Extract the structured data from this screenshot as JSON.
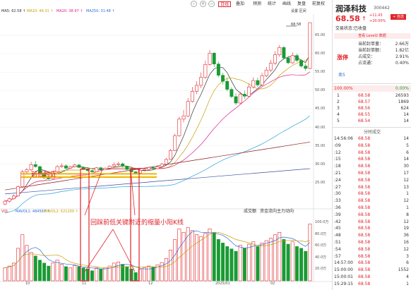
{
  "toolbar": {
    "period": "日线",
    "add": "叠加",
    "predict": "预测",
    "stats": "统计",
    "draw": "画线",
    "trade": "复盘",
    "adjust": "前复权",
    "settings": "设置 区间"
  },
  "ma_row": {
    "ma1": "MA5: 62.58 ↑",
    "ma2": "MA10: 49.31 ↑",
    "ma3": "MA20: 38.97 ↑",
    "ma4": "MA250: 31.48 ↑"
  },
  "vol_header": {
    "label": "VOL",
    "ma1": "MAVOL1: 484567 ↑",
    "ma2": "MAVOL2: 621200 ↑"
  },
  "vol_tabs": [
    "成交额",
    "资金流向",
    "主力动向"
  ],
  "x_axis": [
    "10",
    "11",
    "12",
    "2025/01",
    "02"
  ],
  "price_axis": [
    "65.00",
    "60.00",
    "55.00",
    "50.00",
    "45.00",
    "40.00",
    "35.00",
    "30.00",
    "25.00"
  ],
  "vol_axis": [
    "100.0万",
    "80.0万",
    "60.0万",
    "40.0万",
    "20.0万"
  ],
  "high_label": "68.58",
  "annotations": {
    "support": "前低附近",
    "note": "回踩前低关键附近的缩量小阳K线"
  },
  "stock": {
    "name": "润泽科技",
    "code": "300442",
    "price": "68.58",
    "arrow": "↑",
    "change": "+11.43",
    "pct": "+20.00%",
    "status_label": "交易状态：",
    "status": "已收盘",
    "limit": "涨停",
    "info_label1": "当前封单量：",
    "info_val1": "2.66万",
    "info_label2": "当前封单额：",
    "info_val2": "1.82亿",
    "info_label3": "占成交：",
    "info_val3": "2.91%",
    "info_label4": "占流通：",
    "info_val4": "0.40%",
    "sell_label": "卖5",
    "buy_label": "买5",
    "btn_buy": "+ 自选",
    "btn_add": "+ 自选",
    "level2": "查看 Level2 数据"
  },
  "bid_header": {
    "left": "100.00%",
    "right": "0.00%"
  },
  "bids": [
    {
      "n": "1",
      "p": "68.58",
      "v": "26593"
    },
    {
      "n": "2",
      "p": "68.57",
      "v": "1869"
    },
    {
      "n": "3",
      "p": "68.56",
      "v": "624"
    },
    {
      "n": "4",
      "p": "68.55",
      "v": "14"
    },
    {
      "n": "5",
      "p": "68.54",
      "v": "14"
    }
  ],
  "trades_title": "分时成交",
  "trades": [
    {
      "t": "14:56:06",
      "p": "68.58",
      "v": "14"
    },
    {
      "t": ":09",
      "p": "68.58",
      "v": "5"
    },
    {
      "t": ":12",
      "p": "68.58",
      "v": "6"
    },
    {
      "t": ":15",
      "p": "68.58",
      "v": "14"
    },
    {
      "t": ":18",
      "p": "68.58",
      "v": "30"
    },
    {
      "t": ":21",
      "p": "68.58",
      "v": "17"
    },
    {
      "t": ":24",
      "p": "68.58",
      "v": "12"
    },
    {
      "t": ":27",
      "p": "68.58",
      "v": "13"
    },
    {
      "t": ":30",
      "p": "68.58",
      "v": "1"
    },
    {
      "t": ":33",
      "p": "68.58",
      "v": "12"
    },
    {
      "t": ":36",
      "p": "68.58",
      "v": "1"
    },
    {
      "t": ":39",
      "p": "68.58",
      "v": "8"
    },
    {
      "t": ":42",
      "p": "68.58",
      "v": "12"
    },
    {
      "t": ":45",
      "p": "68.58",
      "v": "19"
    },
    {
      "t": ":48",
      "p": "68.58",
      "v": "36"
    },
    {
      "t": ":51",
      "p": "68.58",
      "v": "16"
    },
    {
      "t": ":54",
      "p": "68.58",
      "v": "12"
    },
    {
      "t": ":57",
      "p": "68.58",
      "v": "3"
    },
    {
      "t": "14:57:00",
      "p": "68.58",
      "v": "6"
    },
    {
      "t": "15:00:00",
      "p": "68.58",
      "v": "1552"
    },
    {
      "t": "15:00:01",
      "p": "68.58",
      "v": "4"
    },
    {
      "t": "15:29:15",
      "p": "68.58",
      "v": "1"
    }
  ],
  "chart_data": {
    "type": "candlestick",
    "price_ylim": [
      23,
      70
    ],
    "candles": [
      [
        23.5,
        24.2,
        23.2,
        24.6
      ],
      [
        24.2,
        24.8,
        23.9,
        25.1
      ],
      [
        24.8,
        25.5,
        24.6,
        25.9
      ],
      [
        25.5,
        27.8,
        25.4,
        28.1
      ],
      [
        27.8,
        31.5,
        27.6,
        32.0
      ],
      [
        31.5,
        32.0,
        30.8,
        32.5
      ],
      [
        32.0,
        33.3,
        31.6,
        34.0
      ],
      [
        33.3,
        32.8,
        32.5,
        34.2
      ],
      [
        32.8,
        31.2,
        30.9,
        33.0
      ],
      [
        31.2,
        30.0,
        29.8,
        31.6
      ],
      [
        30.0,
        29.8,
        29.5,
        30.6
      ],
      [
        29.8,
        31.5,
        29.7,
        31.8
      ],
      [
        31.5,
        32.8,
        31.3,
        33.2
      ],
      [
        32.8,
        33.0,
        32.5,
        33.6
      ],
      [
        33.0,
        32.4,
        32.1,
        33.4
      ],
      [
        32.4,
        32.8,
        32.2,
        33.0
      ],
      [
        32.8,
        33.2,
        32.6,
        33.5
      ],
      [
        33.2,
        32.6,
        32.4,
        33.5
      ],
      [
        32.6,
        32.2,
        32.0,
        32.9
      ],
      [
        32.2,
        31.8,
        31.5,
        32.5
      ],
      [
        31.8,
        31.5,
        31.3,
        32.0
      ],
      [
        31.5,
        32.5,
        31.4,
        32.7
      ],
      [
        32.5,
        32.0,
        31.8,
        32.8
      ],
      [
        32.0,
        32.4,
        31.9,
        32.6
      ],
      [
        32.4,
        32.9,
        32.2,
        33.1
      ],
      [
        32.9,
        33.3,
        32.7,
        33.9
      ],
      [
        33.3,
        33.5,
        33.0,
        34.0
      ],
      [
        33.5,
        32.9,
        32.6,
        33.8
      ],
      [
        32.9,
        32.1,
        31.9,
        33.0
      ],
      [
        32.1,
        31.5,
        31.3,
        32.3
      ],
      [
        31.5,
        31.2,
        31.0,
        31.7
      ],
      [
        31.2,
        31.9,
        31.0,
        32.1
      ],
      [
        31.9,
        32.1,
        31.7,
        32.4
      ],
      [
        32.1,
        32.6,
        31.9,
        32.8
      ],
      [
        32.6,
        32.3,
        32.0,
        32.9
      ],
      [
        32.3,
        32.8,
        32.2,
        33.2
      ],
      [
        32.8,
        33.4,
        32.6,
        33.7
      ],
      [
        33.4,
        34.6,
        33.3,
        35.0
      ],
      [
        34.6,
        36.8,
        34.5,
        37.2
      ],
      [
        36.8,
        40.5,
        36.7,
        41.0
      ],
      [
        40.5,
        44.6,
        40.2,
        45.2
      ],
      [
        44.6,
        45.4,
        43.8,
        46.8
      ],
      [
        45.4,
        49.0,
        45.1,
        49.8
      ],
      [
        49.0,
        51.5,
        48.7,
        52.6
      ],
      [
        51.5,
        53.0,
        50.8,
        54.0
      ],
      [
        53.0,
        55.0,
        52.3,
        56.2
      ],
      [
        55.0,
        58.2,
        54.6,
        59.1
      ],
      [
        58.2,
        61.0,
        57.9,
        61.8
      ],
      [
        61.0,
        58.3,
        57.6,
        61.2
      ],
      [
        58.3,
        55.5,
        55.0,
        58.9
      ],
      [
        55.5,
        54.0,
        53.2,
        56.1
      ],
      [
        54.0,
        52.0,
        51.5,
        54.8
      ],
      [
        52.0,
        50.2,
        49.8,
        52.5
      ],
      [
        50.2,
        48.6,
        48.1,
        51.0
      ],
      [
        48.6,
        50.8,
        48.3,
        51.4
      ],
      [
        50.8,
        50.3,
        49.6,
        51.7
      ],
      [
        50.3,
        52.6,
        50.0,
        53.4
      ],
      [
        52.6,
        54.2,
        52.2,
        55.0
      ],
      [
        54.2,
        53.1,
        52.6,
        54.9
      ],
      [
        53.1,
        55.4,
        52.8,
        56.1
      ],
      [
        55.4,
        56.8,
        55.0,
        57.6
      ],
      [
        56.8,
        58.5,
        56.3,
        59.3
      ],
      [
        58.5,
        60.6,
        58.0,
        61.5
      ],
      [
        60.6,
        62.4,
        60.1,
        63.0
      ],
      [
        62.4,
        59.8,
        59.4,
        62.8
      ],
      [
        59.8,
        58.6,
        58.2,
        60.4
      ],
      [
        58.6,
        60.4,
        58.3,
        61.2
      ],
      [
        60.4,
        59.2,
        58.8,
        60.9
      ],
      [
        59.2,
        57.8,
        57.4,
        59.6
      ],
      [
        57.8,
        57.2,
        56.6,
        58.4
      ],
      [
        57.2,
        68.58,
        57.0,
        68.58
      ]
    ],
    "volume_ylim": [
      0,
      105
    ],
    "volumes": [
      22,
      25,
      30,
      55,
      78,
      60,
      48,
      42,
      35,
      30,
      25,
      30,
      35,
      28,
      24,
      22,
      26,
      24,
      22,
      20,
      17,
      22,
      20,
      22,
      25,
      30,
      32,
      28,
      24,
      20,
      14,
      20,
      22,
      25,
      23,
      27,
      31,
      38,
      52,
      70,
      88,
      82,
      90,
      85,
      78,
      75,
      80,
      88,
      82,
      70,
      64,
      58,
      54,
      50,
      60,
      55,
      62,
      66,
      58,
      64,
      68,
      72,
      78,
      82,
      70,
      62,
      66,
      58,
      55,
      50,
      96
    ]
  }
}
